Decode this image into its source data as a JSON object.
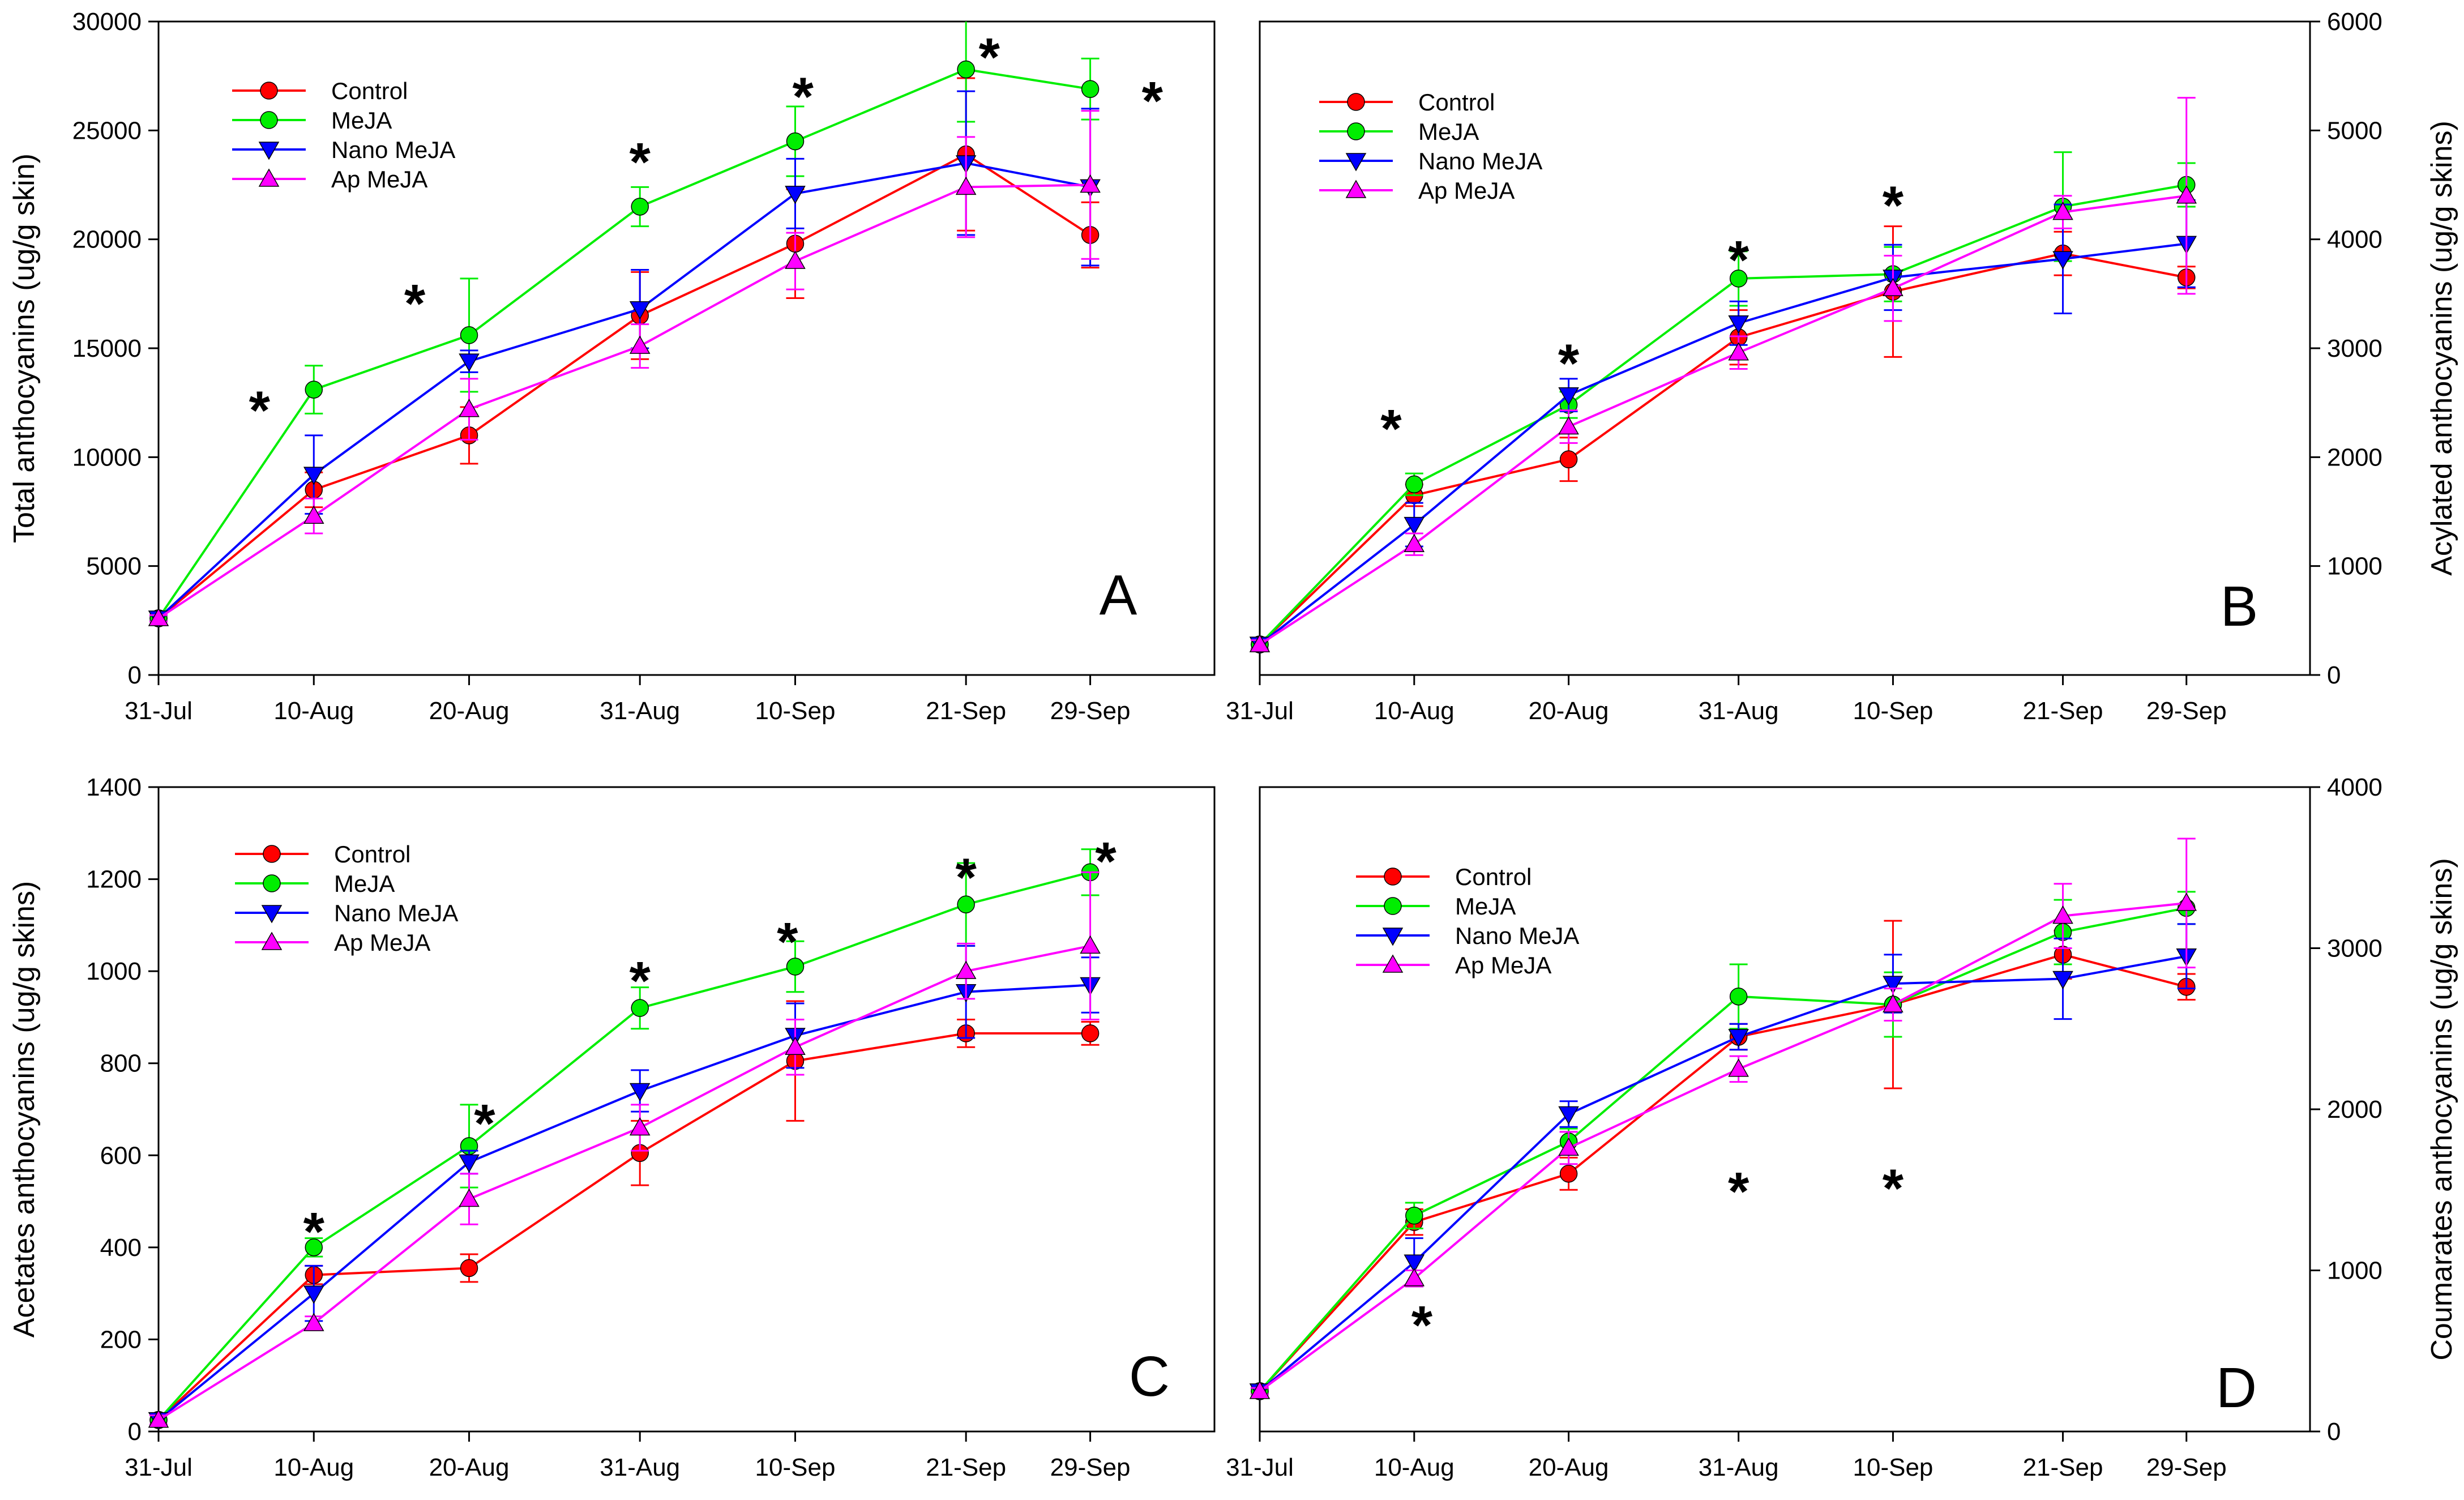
{
  "chart_data": [
    {
      "panel": "A",
      "type": "line",
      "ylabel": "Total anthocyanins (ug/g skin)",
      "ylabel_side": "left",
      "ylim": [
        0,
        30000
      ],
      "yticks": [
        0,
        5000,
        10000,
        15000,
        20000,
        25000,
        30000
      ],
      "x": [
        "31-Jul",
        "10-Aug",
        "20-Aug",
        "31-Aug",
        "10-Sep",
        "21-Sep",
        "29-Sep"
      ],
      "x_numeric": [
        0,
        10,
        20,
        31,
        41,
        52,
        60
      ],
      "xlim": [
        0,
        68
      ],
      "legend": [
        "Control",
        "MeJA",
        "Nano MeJA",
        "Ap MeJA"
      ],
      "legend_position": "top-left",
      "series": [
        {
          "name": "Control",
          "color": "#ff0000",
          "marker": "circle",
          "values": [
            2600,
            8500,
            11000,
            16500,
            19800,
            23900,
            20200
          ],
          "errors": [
            150,
            800,
            1300,
            2000,
            2500,
            3500,
            1500
          ]
        },
        {
          "name": "MeJA",
          "color": "#00ee00",
          "marker": "circle",
          "values": [
            2600,
            13100,
            15600,
            21500,
            24500,
            27800,
            26900
          ],
          "errors": [
            150,
            1100,
            2600,
            900,
            1600,
            2400,
            1400
          ]
        },
        {
          "name": "Nano MeJA",
          "color": "#0000ff",
          "marker": "triangle-down",
          "values": [
            2600,
            9200,
            14400,
            16800,
            22100,
            23500,
            22400
          ],
          "errors": [
            150,
            1800,
            500,
            1800,
            1600,
            3300,
            3600
          ]
        },
        {
          "name": "Ap MeJA",
          "color": "#ff00ff",
          "marker": "triangle-up",
          "values": [
            2600,
            7300,
            12200,
            15100,
            19000,
            22400,
            22500
          ],
          "errors": [
            150,
            800,
            1400,
            1000,
            1300,
            2300,
            3400
          ]
        }
      ],
      "stars": [
        {
          "x": 6.5,
          "y": 12600,
          "label": "*"
        },
        {
          "x": 16.5,
          "y": 17500,
          "label": "*"
        },
        {
          "x": 31,
          "y": 24000,
          "label": "*"
        },
        {
          "x": 41.5,
          "y": 27000,
          "label": "*"
        },
        {
          "x": 53.5,
          "y": 28800,
          "label": "*"
        },
        {
          "x": 64,
          "y": 26800,
          "label": "*"
        }
      ]
    },
    {
      "panel": "B",
      "type": "line",
      "ylabel": "Acylated anthocyanins (ug/g skins)",
      "ylabel_side": "right",
      "ylim": [
        0,
        6000
      ],
      "yticks": [
        0,
        1000,
        2000,
        3000,
        4000,
        5000,
        6000
      ],
      "x": [
        "31-Jul",
        "10-Aug",
        "20-Aug",
        "31-Aug",
        "10-Sep",
        "21-Sep",
        "29-Sep"
      ],
      "x_numeric": [
        0,
        10,
        20,
        31,
        41,
        52,
        60
      ],
      "xlim": [
        0,
        68
      ],
      "legend": [
        "Control",
        "MeJA",
        "Nano MeJA",
        "Ap MeJA"
      ],
      "legend_position": "top-left",
      "series": [
        {
          "name": "Control",
          "color": "#ff0000",
          "marker": "circle",
          "values": [
            280,
            1650,
            1980,
            3100,
            3520,
            3870,
            3650
          ],
          "errors": [
            40,
            100,
            200,
            250,
            600,
            200,
            100
          ]
        },
        {
          "name": "MeJA",
          "color": "#00ee00",
          "marker": "circle",
          "values": [
            280,
            1750,
            2480,
            3640,
            3680,
            4300,
            4500
          ],
          "errors": [
            40,
            100,
            120,
            250,
            250,
            500,
            200
          ]
        },
        {
          "name": "Nano MeJA",
          "color": "#0000ff",
          "marker": "triangle-down",
          "values": [
            280,
            1380,
            2570,
            3230,
            3650,
            3820,
            3960
          ],
          "errors": [
            40,
            200,
            150,
            200,
            300,
            500,
            400
          ]
        },
        {
          "name": "Ap MeJA",
          "color": "#ff00ff",
          "marker": "triangle-up",
          "values": [
            280,
            1200,
            2280,
            2960,
            3550,
            4250,
            4400
          ],
          "errors": [
            40,
            100,
            150,
            150,
            300,
            150,
            900
          ]
        }
      ],
      "stars": [
        {
          "x": 8.5,
          "y": 2350,
          "label": "*"
        },
        {
          "x": 20,
          "y": 2950,
          "label": "*"
        },
        {
          "x": 31,
          "y": 3900,
          "label": "*"
        },
        {
          "x": 41,
          "y": 4400,
          "label": "*"
        }
      ]
    },
    {
      "panel": "C",
      "type": "line",
      "ylabel": "Acetates anthocyanins (ug/g skins)",
      "ylabel_side": "left",
      "ylim": [
        0,
        1400
      ],
      "yticks": [
        0,
        200,
        400,
        600,
        800,
        1000,
        1200,
        1400
      ],
      "x": [
        "31-Jul",
        "10-Aug",
        "20-Aug",
        "31-Aug",
        "10-Sep",
        "21-Sep",
        "29-Sep"
      ],
      "x_numeric": [
        0,
        10,
        20,
        31,
        41,
        52,
        60
      ],
      "xlim": [
        0,
        68
      ],
      "legend": [
        "Control",
        "MeJA",
        "Nano MeJA",
        "Ap MeJA"
      ],
      "legend_position": "top-left",
      "series": [
        {
          "name": "Control",
          "color": "#ff0000",
          "marker": "circle",
          "values": [
            25,
            340,
            355,
            605,
            805,
            865,
            865
          ],
          "errors": [
            10,
            20,
            30,
            70,
            130,
            30,
            25
          ]
        },
        {
          "name": "MeJA",
          "color": "#00ee00",
          "marker": "circle",
          "values": [
            25,
            400,
            620,
            920,
            1010,
            1145,
            1215
          ],
          "errors": [
            10,
            20,
            90,
            45,
            55,
            90,
            50
          ]
        },
        {
          "name": "Nano MeJA",
          "color": "#0000ff",
          "marker": "triangle-down",
          "values": [
            25,
            300,
            585,
            740,
            860,
            955,
            970
          ],
          "errors": [
            10,
            60,
            25,
            45,
            70,
            100,
            60
          ]
        },
        {
          "name": "Ap MeJA",
          "color": "#ff00ff",
          "marker": "triangle-up",
          "values": [
            25,
            235,
            505,
            660,
            835,
            1000,
            1055
          ],
          "errors": [
            10,
            15,
            55,
            50,
            60,
            60,
            160
          ]
        }
      ],
      "stars": [
        {
          "x": 10,
          "y": 455,
          "label": "*"
        },
        {
          "x": 21,
          "y": 690,
          "label": "*"
        },
        {
          "x": 31,
          "y": 1000,
          "label": "*"
        },
        {
          "x": 40.5,
          "y": 1085,
          "label": "*"
        },
        {
          "x": 52,
          "y": 1225,
          "label": "*"
        },
        {
          "x": 61,
          "y": 1260,
          "label": "*"
        }
      ]
    },
    {
      "panel": "D",
      "type": "line",
      "ylabel": "Coumarates anthocyanins (ug/g skins)",
      "ylabel_side": "right",
      "ylim": [
        0,
        4000
      ],
      "yticks": [
        0,
        1000,
        2000,
        3000,
        4000
      ],
      "x": [
        "31-Jul",
        "10-Aug",
        "20-Aug",
        "31-Aug",
        "10-Sep",
        "21-Sep",
        "29-Sep"
      ],
      "x_numeric": [
        0,
        10,
        20,
        31,
        41,
        52,
        60
      ],
      "xlim": [
        0,
        68
      ],
      "legend": [
        "Control",
        " MeJA",
        "Nano MeJA",
        "Ap MeJA"
      ],
      "legend_position": "top-left",
      "series": [
        {
          "name": "Control",
          "color": "#ff0000",
          "marker": "circle",
          "values": [
            250,
            1300,
            1600,
            2450,
            2650,
            2960,
            2760
          ],
          "errors": [
            20,
            80,
            100,
            80,
            520,
            150,
            80
          ]
        },
        {
          "name": " MeJA",
          "color": "#00ee00",
          "marker": "circle",
          "values": [
            250,
            1340,
            1800,
            2700,
            2650,
            3100,
            3250
          ],
          "errors": [
            20,
            80,
            80,
            200,
            200,
            200,
            100
          ]
        },
        {
          "name": "Nano MeJA",
          "color": "#0000ff",
          "marker": "triangle-down",
          "values": [
            250,
            1050,
            1970,
            2450,
            2780,
            2810,
            2950
          ],
          "errors": [
            20,
            150,
            80,
            80,
            180,
            250,
            200
          ]
        },
        {
          "name": "Ap MeJA",
          "color": "#ff00ff",
          "marker": "triangle-up",
          "values": [
            250,
            950,
            1760,
            2250,
            2650,
            3200,
            3280
          ],
          "errors": [
            20,
            50,
            100,
            80,
            100,
            200,
            400
          ]
        }
      ],
      "stars": [
        {
          "x": 10.5,
          "y": 720,
          "label": "*"
        },
        {
          "x": 31,
          "y": 1550,
          "label": "*"
        },
        {
          "x": 41,
          "y": 1570,
          "label": "*"
        }
      ]
    }
  ]
}
